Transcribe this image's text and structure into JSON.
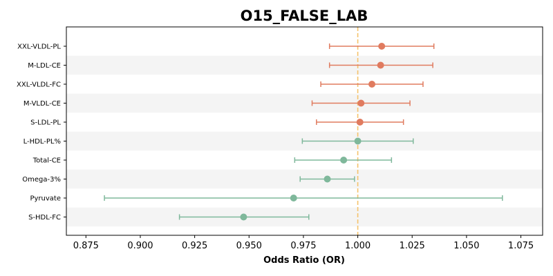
{
  "chart_data": {
    "type": "forest",
    "title": "O15_FALSE_LAB",
    "xlabel": "Odds Ratio (OR)",
    "ylabel": "",
    "xlim": [
      0.866,
      1.085
    ],
    "xticks": [
      "0.875",
      "0.900",
      "0.925",
      "0.950",
      "0.975",
      "1.000",
      "1.025",
      "1.050",
      "1.075"
    ],
    "reference_line": 1.0,
    "grid": false,
    "colors": {
      "positive": "#e07b5f",
      "negative": "#7fb89b",
      "reference": "#f5c26b",
      "band": "#f4f4f4"
    },
    "rows": [
      {
        "label": "XXL-VLDL-PL",
        "or": 1.011,
        "lo": 0.987,
        "hi": 1.035,
        "group": "positive"
      },
      {
        "label": "M-LDL-CE",
        "or": 1.0105,
        "lo": 0.987,
        "hi": 1.0345,
        "group": "positive"
      },
      {
        "label": "XXL-VLDL-FC",
        "or": 1.0065,
        "lo": 0.983,
        "hi": 1.03,
        "group": "positive"
      },
      {
        "label": "M-VLDL-CE",
        "or": 1.0015,
        "lo": 0.979,
        "hi": 1.024,
        "group": "positive"
      },
      {
        "label": "S-LDL-PL",
        "or": 1.001,
        "lo": 0.981,
        "hi": 1.021,
        "group": "positive"
      },
      {
        "label": "L-HDL-PL%",
        "or": 1.0,
        "lo": 0.9745,
        "hi": 1.0255,
        "group": "negative"
      },
      {
        "label": "Total-CE",
        "or": 0.9935,
        "lo": 0.971,
        "hi": 1.0155,
        "group": "negative"
      },
      {
        "label": "Omega-3%",
        "or": 0.986,
        "lo": 0.9735,
        "hi": 0.9985,
        "group": "negative"
      },
      {
        "label": "Pyruvate",
        "or": 0.9705,
        "lo": 0.8835,
        "hi": 1.0665,
        "group": "negative"
      },
      {
        "label": "S-HDL-FC",
        "or": 0.9475,
        "lo": 0.918,
        "hi": 0.9775,
        "group": "negative"
      }
    ]
  }
}
